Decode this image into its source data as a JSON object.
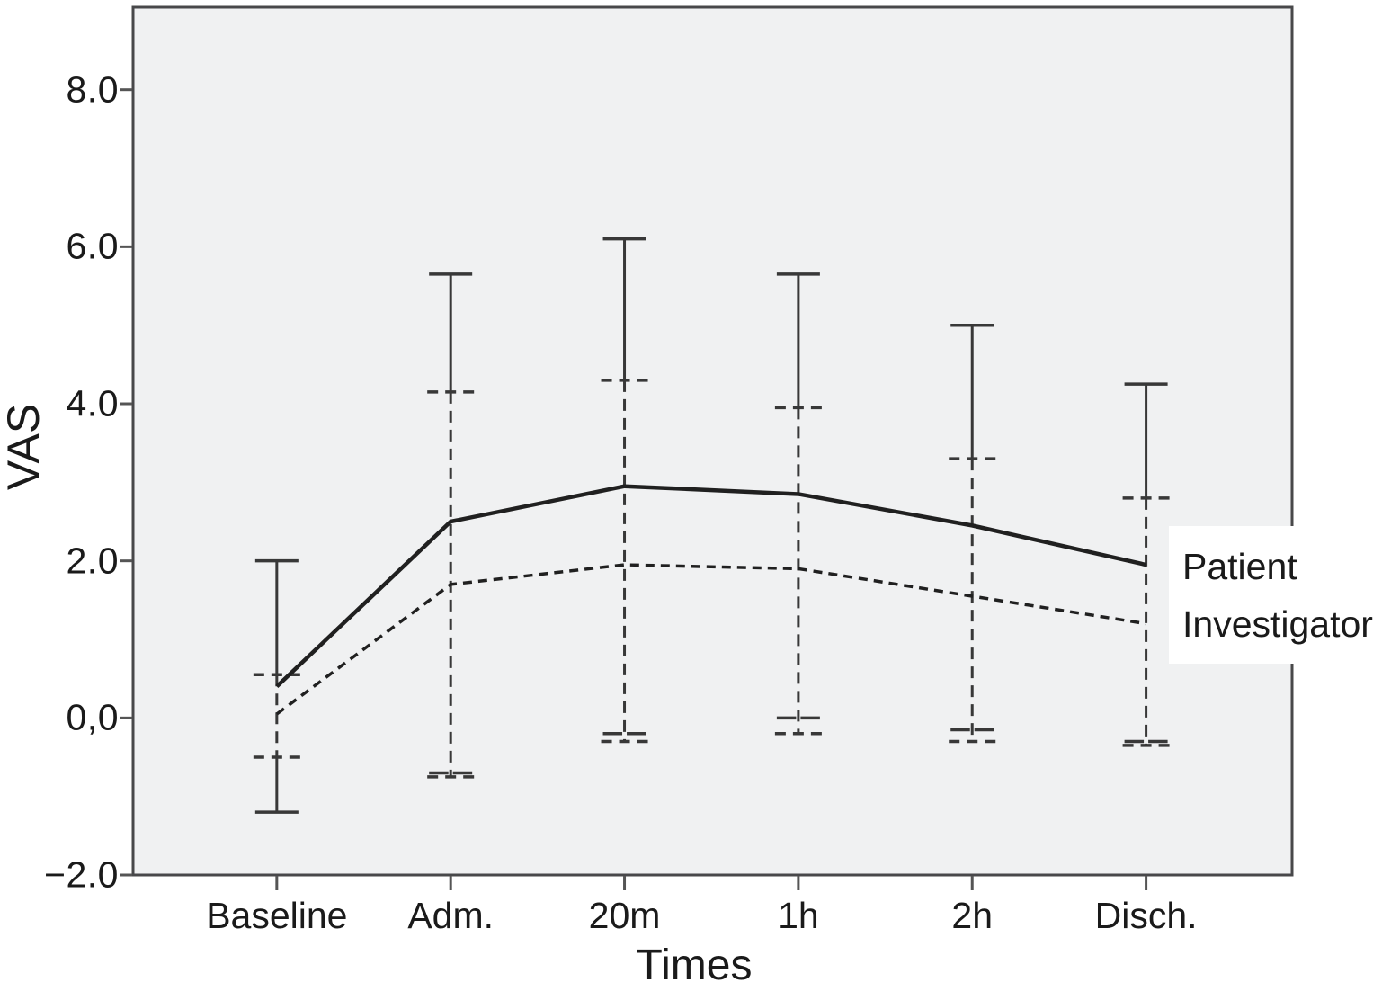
{
  "chart_data": {
    "type": "line",
    "title": "",
    "xlabel": "Times",
    "ylabel": "VAS",
    "categories": [
      "Baseline",
      "Adm.",
      "20m",
      "1h",
      "2h",
      "Disch."
    ],
    "y_ticks": {
      "values": [
        8,
        6,
        4,
        2,
        0,
        -2
      ],
      "labels": [
        "8.0",
        "6.0",
        "4.0",
        "2.0",
        "0,0",
        "−2.0"
      ]
    },
    "ylim": [
      -2,
      9.05
    ],
    "grid": false,
    "legend_position": "right-inside",
    "series": [
      {
        "name": "Patient",
        "style": "solid",
        "values": [
          0.4,
          2.5,
          2.95,
          2.85,
          2.45,
          1.95
        ],
        "ci_low": [
          -1.2,
          -0.7,
          -0.2,
          0.0,
          -0.15,
          -0.3
        ],
        "ci_high": [
          2.0,
          5.65,
          6.1,
          5.65,
          5.0,
          4.25
        ]
      },
      {
        "name": "Investigator",
        "style": "dashed",
        "values": [
          0.05,
          1.7,
          1.95,
          1.9,
          1.55,
          1.2
        ],
        "ci_low": [
          -0.5,
          -0.75,
          -0.3,
          -0.2,
          -0.3,
          -0.35
        ],
        "ci_high": [
          0.55,
          4.15,
          4.3,
          3.95,
          3.3,
          2.8
        ]
      }
    ],
    "colors": {
      "line": "#202020",
      "error_bar": "#383838",
      "tick": "#555555",
      "plot_bg": "#f0f1f2",
      "border": "#48484a",
      "text": "#1a1a1a",
      "legend_bg": "#ffffff"
    }
  }
}
